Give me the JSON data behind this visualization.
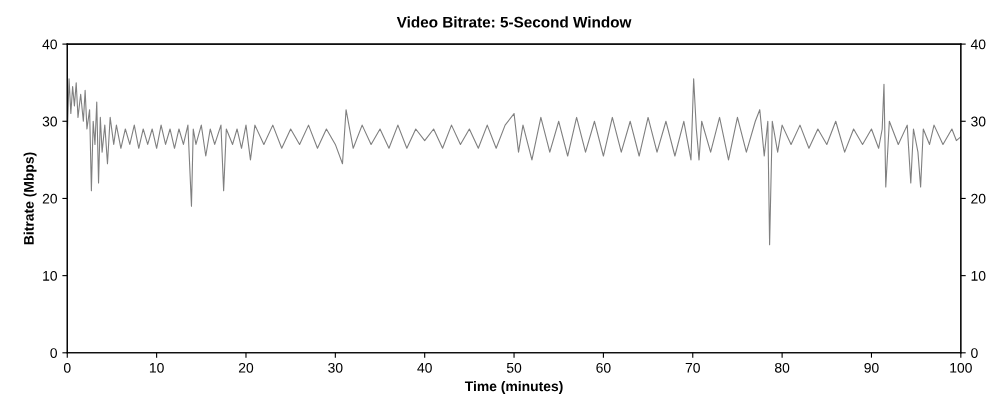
{
  "chart_data": {
    "type": "line",
    "title": "Video Bitrate: 5-Second Window",
    "xlabel": "Time (minutes)",
    "ylabel": "Bitrate (Mbps)",
    "xlim": [
      0,
      100
    ],
    "xticks": [
      0,
      10,
      20,
      30,
      40,
      50,
      60,
      70,
      80,
      90,
      100
    ],
    "ylim": [
      0,
      40
    ],
    "yticks": [
      0,
      10,
      20,
      30,
      40
    ],
    "y2lim": [
      0,
      40
    ],
    "y2ticks": [
      0,
      10,
      20,
      30,
      40
    ],
    "grid": false,
    "series": [
      {
        "color": "#808080",
        "x": [
          0,
          0.2,
          0.4,
          0.6,
          0.8,
          1.0,
          1.2,
          1.5,
          1.8,
          2.0,
          2.2,
          2.5,
          2.7,
          2.9,
          3.1,
          3.3,
          3.5,
          3.7,
          3.9,
          4.2,
          4.5,
          4.8,
          5.2,
          5.5,
          6.0,
          6.5,
          7.0,
          7.5,
          8.0,
          8.5,
          9.0,
          9.5,
          10.0,
          10.5,
          11.0,
          11.5,
          12.0,
          12.5,
          13.0,
          13.5,
          13.9,
          14.1,
          14.4,
          15.0,
          15.5,
          16.0,
          16.5,
          17.2,
          17.5,
          17.8,
          18.5,
          19.0,
          19.5,
          20.0,
          20.5,
          21.0,
          22.0,
          23.0,
          24.0,
          25.0,
          26.0,
          27.0,
          28.0,
          29.0,
          30.0,
          30.8,
          31.2,
          32.0,
          33.0,
          34.0,
          35.0,
          36.0,
          37.0,
          38.0,
          39.0,
          40.0,
          41.0,
          42.0,
          43.0,
          44.0,
          45.0,
          46.0,
          47.0,
          48.0,
          49.0,
          50.0,
          50.5,
          51.0,
          52.0,
          53.0,
          54.0,
          55.0,
          56.0,
          57.0,
          58.0,
          59.0,
          60.0,
          61.0,
          62.0,
          63.0,
          64.0,
          65.0,
          66.0,
          67.0,
          68.0,
          69.0,
          69.8,
          70.1,
          70.4,
          70.7,
          71.0,
          72.0,
          73.0,
          74.0,
          75.0,
          76.0,
          77.0,
          77.5,
          78.0,
          78.4,
          78.6,
          78.9,
          79.5,
          80.0,
          81.0,
          82.0,
          83.0,
          84.0,
          85.0,
          86.0,
          87.0,
          88.0,
          89.0,
          90.0,
          90.8,
          91.2,
          91.4,
          91.6,
          92.0,
          93.0,
          94.0,
          94.4,
          94.7,
          95.2,
          95.5,
          95.8,
          96.5,
          97.0,
          98.0,
          99.0,
          99.5,
          100
        ],
        "values": [
          28,
          35.5,
          31,
          34.5,
          32,
          35,
          30.5,
          33.5,
          30,
          34,
          29,
          31.5,
          21,
          30,
          27,
          32.5,
          22,
          30.5,
          26,
          29.5,
          24.5,
          30.5,
          27,
          29.5,
          26.5,
          29,
          27,
          29.5,
          26.5,
          29,
          27,
          29,
          26.5,
          29.5,
          27,
          29,
          26.5,
          29,
          27,
          29.5,
          19,
          29,
          27,
          29.5,
          25.5,
          29,
          27,
          29.5,
          21,
          29,
          27,
          29,
          26.5,
          29.5,
          25,
          29.5,
          27,
          29.5,
          26.5,
          29,
          27,
          29.5,
          26.5,
          29,
          27,
          24.5,
          31.5,
          26.5,
          29.5,
          27,
          29,
          26.5,
          29.5,
          26.5,
          29,
          27.5,
          29,
          26.5,
          29.5,
          27,
          29,
          26.5,
          29.5,
          26.5,
          29.5,
          31,
          26,
          29.5,
          25,
          30.5,
          26,
          30,
          25.5,
          30.5,
          26,
          30,
          25.5,
          30.5,
          26,
          30,
          25.5,
          30.5,
          26,
          30,
          25.5,
          30,
          25,
          35.5,
          29,
          25,
          30,
          26,
          30.5,
          25,
          30.5,
          26,
          30,
          31.5,
          25.5,
          30,
          14,
          30,
          26,
          29.5,
          27,
          29.5,
          26.5,
          29,
          27,
          30,
          26,
          29,
          27,
          29,
          26.5,
          29,
          34.8,
          21.5,
          30,
          27,
          29.5,
          22,
          29,
          26,
          21.5,
          29,
          27,
          29.5,
          27,
          29,
          27.5,
          28
        ]
      }
    ]
  }
}
